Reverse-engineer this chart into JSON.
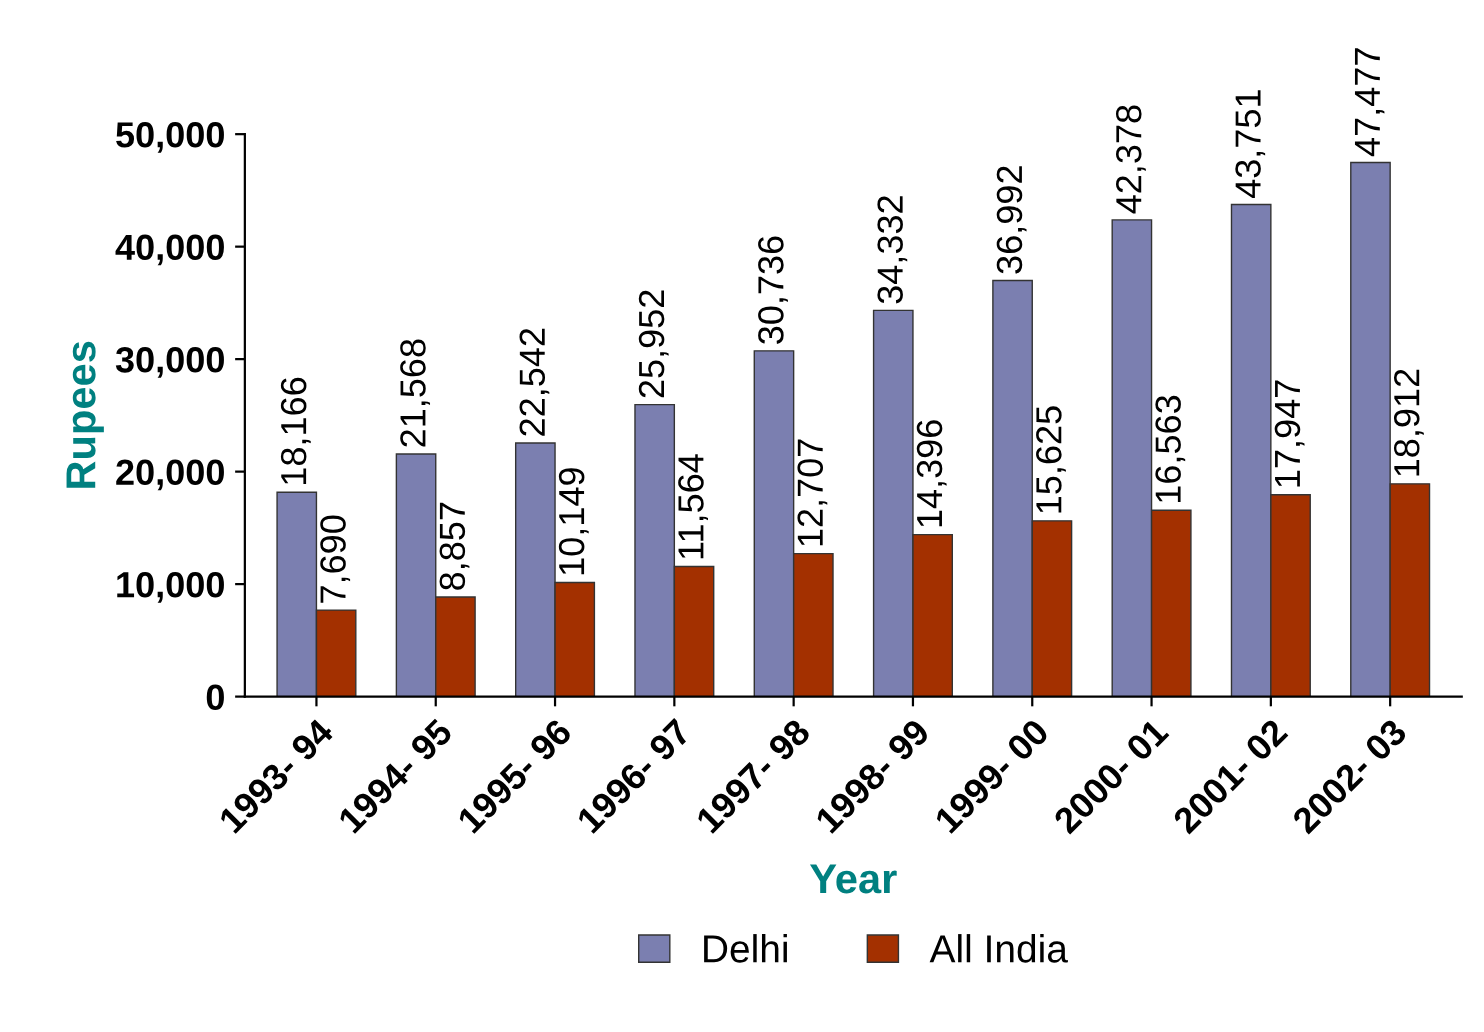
{
  "chart_data": {
    "type": "bar",
    "xlabel": "Year",
    "ylabel": "Rupees",
    "categories": [
      "1993- 94",
      "1994- 95",
      "1995- 96",
      "1996- 97",
      "1997- 98",
      "1998- 99",
      "1999- 00",
      "2000- 01",
      "2001- 02",
      "2002- 03"
    ],
    "series": [
      {
        "name": "Delhi",
        "color": "#7b7fb0",
        "values": [
          18166,
          21568,
          22542,
          25952,
          30736,
          34332,
          36992,
          42378,
          43751,
          47477
        ],
        "value_labels": [
          "18,166",
          "21,568",
          "22,542",
          "25,952",
          "30,736",
          "34,332",
          "36,992",
          "42,378",
          "43,751",
          "47,477"
        ]
      },
      {
        "name": "All India",
        "color": "#a33000",
        "values": [
          7690,
          8857,
          10149,
          11564,
          12707,
          14396,
          15625,
          16563,
          17947,
          18912
        ],
        "value_labels": [
          "7,690",
          "8,857",
          "10,149",
          "11,564",
          "12,707",
          "14,396",
          "15,625",
          "16,563",
          "17,947",
          "18,912"
        ]
      }
    ],
    "ylim": [
      0,
      50000
    ],
    "yticks": [
      {
        "value": 0,
        "label": "0"
      },
      {
        "value": 10000,
        "label": "10,000"
      },
      {
        "value": 20000,
        "label": "20,000"
      },
      {
        "value": 30000,
        "label": "30,000"
      },
      {
        "value": 40000,
        "label": "40,000"
      },
      {
        "value": 50000,
        "label": "50,000"
      }
    ],
    "grid": false,
    "legend": "bottom"
  }
}
